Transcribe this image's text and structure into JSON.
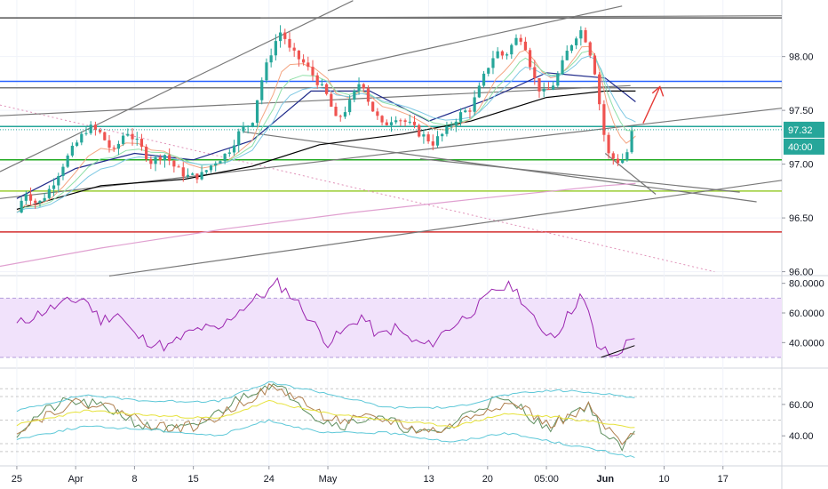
{
  "chart_data": {
    "type": "candlestick",
    "instrument_hint": "",
    "x_axis": {
      "labels": [
        "25",
        "Apr",
        "8",
        "15",
        "24",
        "May",
        "13",
        "20",
        "05:00",
        "Jun",
        "10",
        "17"
      ],
      "label_positions_days": [
        0,
        7,
        14,
        21,
        30,
        37,
        49,
        56,
        63,
        70,
        77,
        84
      ],
      "highlighted_label": "Jun",
      "range_days": [
        -2,
        91
      ]
    },
    "main_panel": {
      "y_ticks": [
        "98.00",
        "97.50",
        "97.00",
        "96.50",
        "96.00"
      ],
      "ylim": [
        95.98,
        98.46
      ],
      "last_price_label": "97.32",
      "countdown_label": "40:00",
      "price_points": [
        [
          0.0,
          96.55
        ],
        [
          1.0,
          96.75
        ],
        [
          2.5,
          96.62
        ],
        [
          4.0,
          96.78
        ],
        [
          5.5,
          97.0
        ],
        [
          7.0,
          97.18
        ],
        [
          8.5,
          97.35
        ],
        [
          10.0,
          97.28
        ],
        [
          11.5,
          97.1
        ],
        [
          13.0,
          97.32
        ],
        [
          14.5,
          97.18
        ],
        [
          16.0,
          97.02
        ],
        [
          17.5,
          97.1
        ],
        [
          19.0,
          96.95
        ],
        [
          20.5,
          96.88
        ],
        [
          22.0,
          96.9
        ],
        [
          23.5,
          97.02
        ],
        [
          25.0,
          97.1
        ],
        [
          26.5,
          97.3
        ],
        [
          28.0,
          97.4
        ],
        [
          29.0,
          97.75
        ],
        [
          30.5,
          98.1
        ],
        [
          31.5,
          98.25
        ],
        [
          32.5,
          98.05
        ],
        [
          34.0,
          97.95
        ],
        [
          35.5,
          97.8
        ],
        [
          37.0,
          97.62
        ],
        [
          38.0,
          97.4
        ],
        [
          39.5,
          97.55
        ],
        [
          41.0,
          97.8
        ],
        [
          42.0,
          97.55
        ],
        [
          43.5,
          97.35
        ],
        [
          45.0,
          97.45
        ],
        [
          46.5,
          97.38
        ],
        [
          48.0,
          97.28
        ],
        [
          49.5,
          97.2
        ],
        [
          51.0,
          97.3
        ],
        [
          52.5,
          97.45
        ],
        [
          54.0,
          97.52
        ],
        [
          55.0,
          97.7
        ],
        [
          56.0,
          97.9
        ],
        [
          57.0,
          98.05
        ],
        [
          58.0,
          98.0
        ],
        [
          59.0,
          98.12
        ],
        [
          59.8,
          98.2
        ],
        [
          60.5,
          98.1
        ],
        [
          61.5,
          97.8
        ],
        [
          62.5,
          97.65
        ],
        [
          63.5,
          97.7
        ],
        [
          64.5,
          97.85
        ],
        [
          65.5,
          98.05
        ],
        [
          66.5,
          98.2
        ],
        [
          67.2,
          98.25
        ],
        [
          68.0,
          98.1
        ],
        [
          68.8,
          97.85
        ],
        [
          69.5,
          97.45
        ],
        [
          70.2,
          97.1
        ],
        [
          71.0,
          97.05
        ],
        [
          71.8,
          97.02
        ],
        [
          72.5,
          97.08
        ],
        [
          73.2,
          97.3
        ],
        [
          73.6,
          97.32
        ]
      ],
      "moving_averages": [
        {
          "color": "#1f2a8a",
          "points": [
            [
              0.0,
              96.68
            ],
            [
              7.0,
              96.96
            ],
            [
              14.0,
              97.1
            ],
            [
              21.0,
              97.04
            ],
            [
              28.0,
              97.22
            ],
            [
              35.0,
              97.68
            ],
            [
              42.0,
              97.68
            ],
            [
              49.0,
              97.4
            ],
            [
              56.0,
              97.6
            ],
            [
              63.0,
              97.85
            ],
            [
              70.0,
              97.8
            ],
            [
              73.6,
              97.58
            ]
          ]
        },
        {
          "color": "#000000",
          "points": [
            [
              0.0,
              96.58
            ],
            [
              10.0,
              96.8
            ],
            [
              20.0,
              96.86
            ],
            [
              28.0,
              96.98
            ],
            [
              36.0,
              97.18
            ],
            [
              46.0,
              97.28
            ],
            [
              54.0,
              97.4
            ],
            [
              63.0,
              97.62
            ],
            [
              70.0,
              97.68
            ],
            [
              73.6,
              97.68
            ]
          ]
        },
        {
          "color": "#e0a0d0",
          "points": [
            [
              -2.0,
              96.05
            ],
            [
              10.0,
              96.22
            ],
            [
              25.0,
              96.4
            ],
            [
              40.0,
              96.55
            ],
            [
              55.0,
              96.68
            ],
            [
              70.0,
              96.8
            ],
            [
              73.6,
              96.82
            ]
          ]
        }
      ],
      "horizontal_levels": [
        {
          "value": 98.36,
          "color": "#555555"
        },
        {
          "value": 97.77,
          "color": "#2962ff"
        },
        {
          "value": 97.71,
          "color": "#787878"
        },
        {
          "value": 97.35,
          "color": "#26a69a"
        },
        {
          "value": 97.04,
          "color": "#22aa22"
        },
        {
          "value": 96.75,
          "color": "#9acd32"
        },
        {
          "value": 96.37,
          "color": "#d32f2f"
        }
      ],
      "trendlines": [
        {
          "from": [
            -2,
            96.93
          ],
          "to": [
            40,
            98.52
          ],
          "color": "#787878"
        },
        {
          "from": [
            -2,
            97.45
          ],
          "to": [
            73,
            97.73
          ],
          "color": "#787878"
        },
        {
          "from": [
            29,
            98.36
          ],
          "to": [
            91,
            98.38
          ],
          "color": "#787878"
        },
        {
          "from": [
            37,
            97.87
          ],
          "to": [
            72,
            98.47
          ],
          "color": "#787878"
        },
        {
          "from": [
            27,
            97.3
          ],
          "to": [
            88,
            96.65
          ],
          "color": "#787878"
        },
        {
          "from": [
            48,
            97.05
          ],
          "to": [
            86,
            96.74
          ],
          "color": "#787878"
        },
        {
          "from": [
            70,
            97.1
          ],
          "to": [
            76,
            96.72
          ],
          "color": "#787878"
        },
        {
          "from": [
            11,
            95.96
          ],
          "to": [
            91,
            96.85
          ],
          "color": "#787878"
        },
        {
          "from": [
            -2,
            96.68
          ],
          "to": [
            91,
            97.52
          ],
          "color": "#787878"
        }
      ]
    },
    "rsi_panel": {
      "y_ticks": [
        "80.0000",
        "60.0000",
        "40.0000"
      ],
      "ylim": [
        24,
        84
      ],
      "band": [
        30,
        70
      ],
      "line_color": "#9c27b0",
      "points": [
        [
          0,
          52
        ],
        [
          2,
          58
        ],
        [
          4,
          63
        ],
        [
          6,
          67
        ],
        [
          8,
          70
        ],
        [
          10,
          55
        ],
        [
          12,
          60
        ],
        [
          14,
          45
        ],
        [
          16,
          40
        ],
        [
          18,
          37
        ],
        [
          20,
          45
        ],
        [
          22,
          50
        ],
        [
          24,
          48
        ],
        [
          26,
          60
        ],
        [
          28,
          68
        ],
        [
          30,
          75
        ],
        [
          31,
          80
        ],
        [
          33,
          70
        ],
        [
          35,
          55
        ],
        [
          37,
          40
        ],
        [
          39,
          48
        ],
        [
          41,
          58
        ],
        [
          43,
          44
        ],
        [
          45,
          50
        ],
        [
          47,
          41
        ],
        [
          49,
          38
        ],
        [
          51,
          48
        ],
        [
          53,
          56
        ],
        [
          55,
          65
        ],
        [
          57,
          76
        ],
        [
          59,
          78
        ],
        [
          60,
          70
        ],
        [
          62,
          50
        ],
        [
          64,
          45
        ],
        [
          66,
          62
        ],
        [
          67,
          72
        ],
        [
          68,
          60
        ],
        [
          69,
          38
        ],
        [
          70,
          34
        ],
        [
          71,
          30
        ],
        [
          72,
          36
        ],
        [
          73,
          42
        ],
        [
          73.6,
          46
        ]
      ]
    },
    "stoch_panel": {
      "y_ticks": [
        "60.00",
        "40.00"
      ],
      "ylim": [
        22,
        82
      ],
      "series": [
        {
          "color": "#5f8f5f",
          "points": [
            [
              0,
              42
            ],
            [
              3,
              55
            ],
            [
              6,
              62
            ],
            [
              9,
              60
            ],
            [
              12,
              55
            ],
            [
              15,
              46
            ],
            [
              18,
              44
            ],
            [
              21,
              45
            ],
            [
              24,
              55
            ],
            [
              27,
              66
            ],
            [
              30,
              73
            ],
            [
              33,
              65
            ],
            [
              36,
              50
            ],
            [
              39,
              47
            ],
            [
              42,
              52
            ],
            [
              45,
              48
            ],
            [
              48,
              41
            ],
            [
              51,
              44
            ],
            [
              54,
              56
            ],
            [
              57,
              63
            ],
            [
              60,
              58
            ],
            [
              63,
              44
            ],
            [
              66,
              55
            ],
            [
              68,
              60
            ],
            [
              70,
              40
            ],
            [
              72,
              32
            ],
            [
              73.6,
              42
            ]
          ]
        },
        {
          "color": "#b08050",
          "points": [
            [
              0,
              44
            ],
            [
              3,
              52
            ],
            [
              6,
              60
            ],
            [
              9,
              61
            ],
            [
              12,
              57
            ],
            [
              15,
              49
            ],
            [
              18,
              45
            ],
            [
              21,
              46
            ],
            [
              24,
              52
            ],
            [
              27,
              62
            ],
            [
              30,
              70
            ],
            [
              33,
              66
            ],
            [
              36,
              54
            ],
            [
              39,
              49
            ],
            [
              42,
              51
            ],
            [
              45,
              49
            ],
            [
              48,
              43
            ],
            [
              51,
              44
            ],
            [
              54,
              52
            ],
            [
              57,
              60
            ],
            [
              60,
              59
            ],
            [
              63,
              47
            ],
            [
              66,
              52
            ],
            [
              68,
              58
            ],
            [
              70,
              45
            ],
            [
              72,
              35
            ],
            [
              73.6,
              40
            ]
          ]
        },
        {
          "color": "#e6e23c",
          "points": [
            [
              0,
              47
            ],
            [
              8,
              56
            ],
            [
              16,
              53
            ],
            [
              24,
              51
            ],
            [
              30,
              62
            ],
            [
              36,
              55
            ],
            [
              44,
              50
            ],
            [
              52,
              46
            ],
            [
              58,
              54
            ],
            [
              64,
              52
            ],
            [
              70,
              48
            ],
            [
              73.6,
              45
            ]
          ]
        },
        {
          "color": "#5ec8d8",
          "points": [
            [
              0,
              56
            ],
            [
              8,
              66
            ],
            [
              16,
              62
            ],
            [
              24,
              62
            ],
            [
              30,
              74
            ],
            [
              36,
              68
            ],
            [
              44,
              58
            ],
            [
              52,
              58
            ],
            [
              58,
              66
            ],
            [
              64,
              69
            ],
            [
              70,
              67
            ],
            [
              73.6,
              64
            ]
          ]
        },
        {
          "color": "#5ec8d8",
          "points": [
            [
              0,
              38
            ],
            [
              8,
              46
            ],
            [
              16,
              44
            ],
            [
              24,
              40
            ],
            [
              30,
              50
            ],
            [
              36,
              42
            ],
            [
              44,
              42
            ],
            [
              52,
              36
            ],
            [
              58,
              42
            ],
            [
              64,
              36
            ],
            [
              70,
              30
            ],
            [
              73.6,
              26
            ]
          ]
        }
      ]
    }
  },
  "colors": {
    "up_candle": "#26a69a",
    "down_candle": "#ef5350",
    "price_label_bg": "#26a69a",
    "rsi_band_fill": "#f1e2fb",
    "annotation_arrow": "#e53935",
    "grid": "#f0f3fa",
    "axis_text": "#131722"
  }
}
